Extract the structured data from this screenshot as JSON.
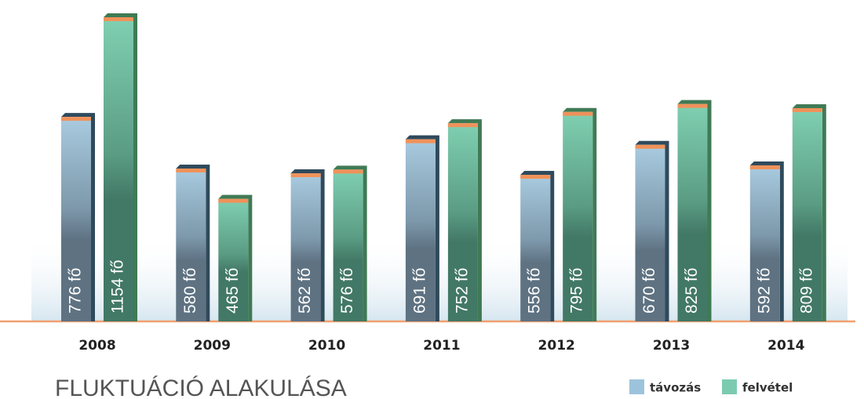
{
  "chart_data": {
    "type": "bar",
    "title": "FLUKTUÁCIÓ ALAKULÁSA",
    "categories": [
      "2008",
      "2009",
      "2010",
      "2011",
      "2012",
      "2013",
      "2014"
    ],
    "series": [
      {
        "name": "távozás",
        "color": "#9dc3dc",
        "values": [
          776,
          580,
          562,
          691,
          556,
          670,
          592
        ],
        "value_labels": [
          "776 fő",
          "580 fő",
          "562 fő",
          "691 fő",
          "556 fő",
          "670 fő",
          "592 fő"
        ]
      },
      {
        "name": "felvétel",
        "color": "#7ccbb0",
        "values": [
          1154,
          465,
          576,
          752,
          795,
          825,
          809
        ],
        "value_labels": [
          "1154 fő",
          "465 fő",
          "576 fő",
          "752 fő",
          "795 fő",
          "825 fő",
          "809 fő"
        ]
      }
    ]
  }
}
